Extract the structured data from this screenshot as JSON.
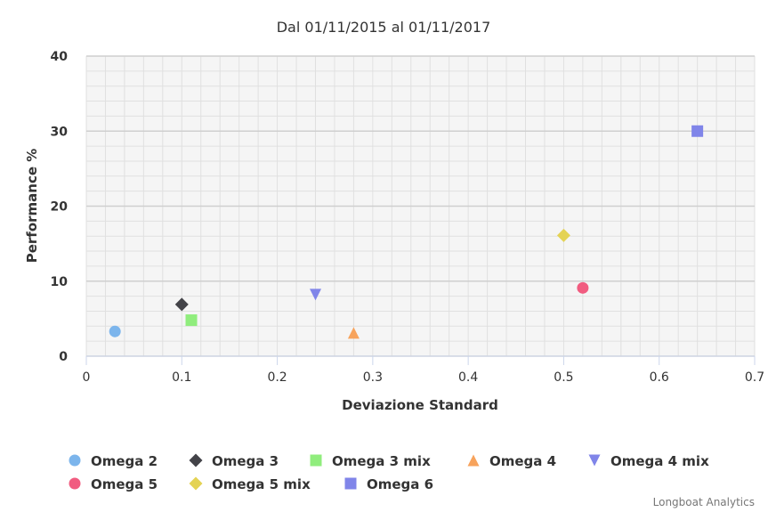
{
  "chart_data": {
    "type": "scatter",
    "title": "Dal 01/11/2015 al 01/11/2017",
    "xlabel": "Deviazione Standard",
    "ylabel": "Performance %",
    "xlim": [
      0,
      0.7
    ],
    "ylim": [
      0,
      40
    ],
    "xticks": [
      "0",
      "0.1",
      "0.2",
      "0.3",
      "0.4",
      "0.5",
      "0.6",
      "0.7"
    ],
    "yticks": [
      "0",
      "10",
      "20",
      "30",
      "40"
    ],
    "grid": true,
    "legend_position": "bottom",
    "series": [
      {
        "name": "Omega 2",
        "marker": "circle",
        "color": "#7cb5ec",
        "x": 0.03,
        "y": 3.3
      },
      {
        "name": "Omega 3",
        "marker": "diamond",
        "color": "#434348",
        "x": 0.1,
        "y": 6.9
      },
      {
        "name": "Omega 3 mix",
        "marker": "square",
        "color": "#90ed7d",
        "x": 0.11,
        "y": 4.8
      },
      {
        "name": "Omega 4",
        "marker": "triangle",
        "color": "#f7a35c",
        "x": 0.28,
        "y": 3.1
      },
      {
        "name": "Omega 4 mix",
        "marker": "triangle-down",
        "color": "#8085e9",
        "x": 0.24,
        "y": 8.2
      },
      {
        "name": "Omega 5",
        "marker": "circle",
        "color": "#f15c80",
        "x": 0.52,
        "y": 9.1
      },
      {
        "name": "Omega 5 mix",
        "marker": "diamond",
        "color": "#e4d354",
        "x": 0.5,
        "y": 16.1
      },
      {
        "name": "Omega 6",
        "marker": "square",
        "color": "#8085e9",
        "x": 0.64,
        "y": 30
      }
    ]
  },
  "credits": "Longboat Analytics"
}
